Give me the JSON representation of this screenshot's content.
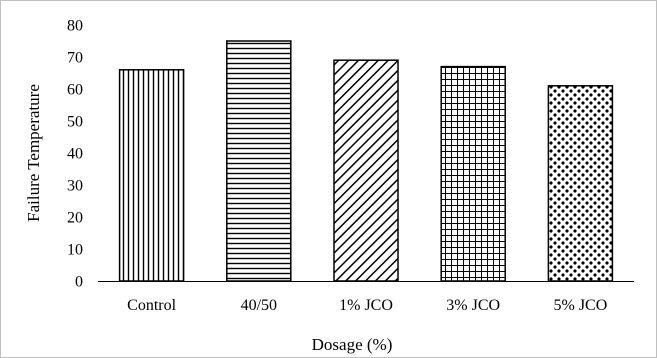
{
  "chart_data": {
    "type": "bar",
    "title": "",
    "xlabel": "Dosage (%)",
    "ylabel": "Failure Temperature",
    "categories": [
      "Control",
      "40/50",
      "1% JCO",
      "3% JCO",
      "5% JCO"
    ],
    "values": [
      66,
      75,
      69,
      67,
      61
    ],
    "patterns": [
      "vertical-lines",
      "horizontal-lines",
      "diagonal-lines",
      "grid",
      "dots"
    ],
    "ylim": [
      0,
      80
    ],
    "yticks": [
      "0",
      "10",
      "20",
      "30",
      "40",
      "50",
      "60",
      "70",
      "80"
    ],
    "grid": false,
    "legend": "none",
    "bar_stroke": "#000000",
    "bar_fill": "#ffffff"
  }
}
